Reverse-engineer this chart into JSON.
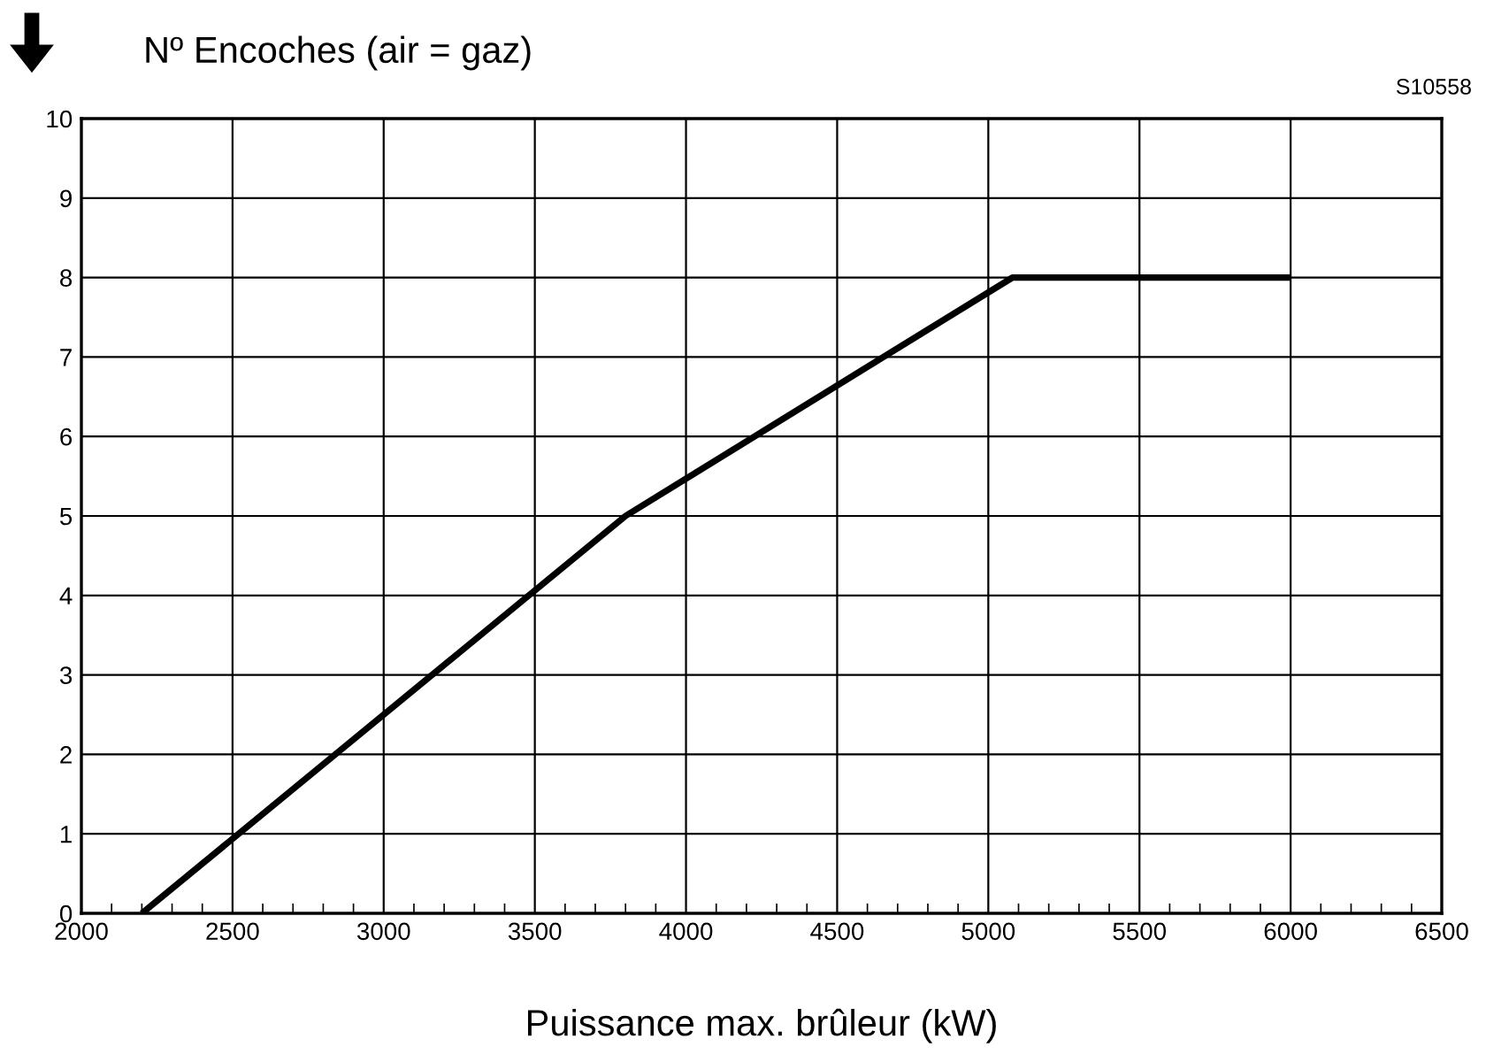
{
  "chart_data": {
    "type": "line",
    "ylabel": "Nº Encoches (air = gaz)",
    "xlabel": "Puissance max. brûleur (kW)",
    "annotations": [
      "S10558"
    ],
    "x": [
      2200,
      3800,
      5080,
      6000
    ],
    "series": [
      {
        "color": "#000000",
        "values": [
          0,
          5,
          8,
          8
        ]
      }
    ],
    "xlim": [
      2000,
      6500
    ],
    "xticks": [
      2000,
      2500,
      3000,
      3500,
      4000,
      4500,
      5000,
      5500,
      6000,
      6500
    ],
    "ylim": [
      0,
      10
    ],
    "yticks": [
      0,
      1,
      2,
      3,
      4,
      5,
      6,
      7,
      8,
      9,
      10
    ],
    "grid": true,
    "line_style": "solid"
  }
}
